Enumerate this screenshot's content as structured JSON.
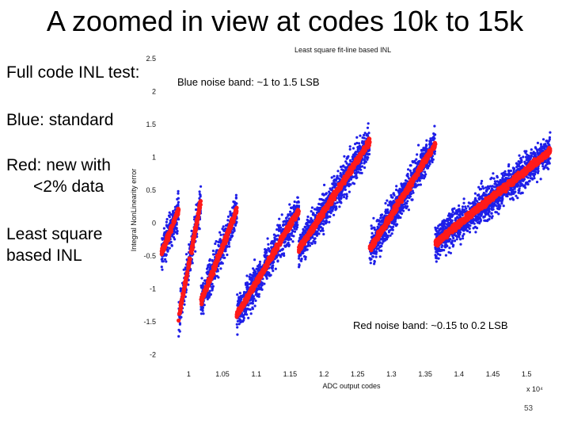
{
  "slide": {
    "title": "A zoomed in view at codes 10k to 15k",
    "bullets": [
      "Full code INL test:",
      "Blue: standard",
      "Red: new with",
      "<2% data",
      "Least square",
      "based INL"
    ],
    "annotations": {
      "blue_band": "Blue noise band: ~1 to 1.5 LSB",
      "red_band": "Red noise band: ~0.15 to 0.2 LSB"
    },
    "page_number": "53"
  },
  "chart_data": {
    "type": "scatter",
    "title": "Least square fit-line based INL",
    "xlabel": "ADC output codes",
    "ylabel": "Integral NonLinearity error",
    "x_multiplier": "x 10⁴",
    "xlim": [
      0.955,
      1.535
    ],
    "ylim": [
      -2.15,
      2.55
    ],
    "xticks": [
      1,
      1.05,
      1.1,
      1.15,
      1.2,
      1.25,
      1.3,
      1.35,
      1.4,
      1.45,
      1.5
    ],
    "yticks": [
      2.5,
      2,
      1.5,
      1,
      0.5,
      0,
      -0.5,
      -1,
      -1.5,
      -2
    ],
    "tick_labels_x": [
      "1",
      "1.05",
      "1.1",
      "1.15",
      "1.2",
      "1.25",
      "1.3",
      "1.35",
      "1.4",
      "1.45",
      "1.5"
    ],
    "tick_labels_y": [
      "2.5",
      "2",
      "1.5",
      "1",
      "0.5",
      "0",
      "-0.5",
      "-1",
      "-1.5",
      "-2"
    ],
    "grid": false,
    "segments": [
      {
        "x_start": 0.96,
        "x_end": 0.985,
        "inl_start": -0.45,
        "inl_end": 0.2
      },
      {
        "x_start": 0.985,
        "x_end": 1.018,
        "inl_start": -1.45,
        "inl_end": 0.35
      },
      {
        "x_start": 1.018,
        "x_end": 1.071,
        "inl_start": -1.2,
        "inl_end": 0.2
      },
      {
        "x_start": 1.071,
        "x_end": 1.163,
        "inl_start": -1.4,
        "inl_end": 0.2
      },
      {
        "x_start": 1.163,
        "x_end": 1.268,
        "inl_start": -0.4,
        "inl_end": 1.25
      },
      {
        "x_start": 1.268,
        "x_end": 1.365,
        "inl_start": -0.4,
        "inl_end": 1.2
      },
      {
        "x_start": 1.365,
        "x_end": 1.535,
        "inl_start": -0.3,
        "inl_end": 1.1
      }
    ],
    "series": [
      {
        "name": "standard",
        "color": "#1f1fe8",
        "noise_band_lsb": [
          1,
          1.5
        ]
      },
      {
        "name": "new with <2% data",
        "color": "#ff1a1a",
        "noise_band_lsb": [
          0.15,
          0.2
        ]
      }
    ]
  }
}
